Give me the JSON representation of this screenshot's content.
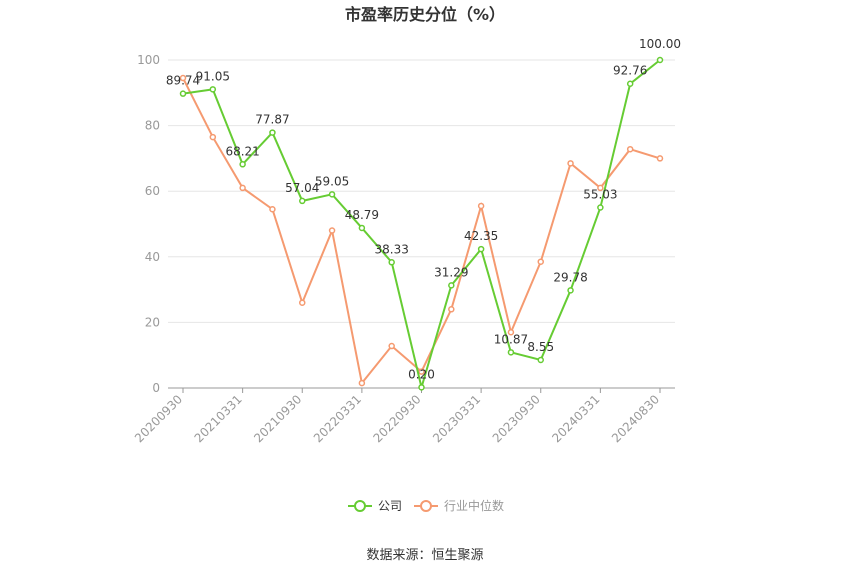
{
  "chart_data": {
    "type": "line",
    "title": "市盈率历史分位（%）",
    "x": [
      "20200930",
      "20201231",
      "20210331",
      "20210630",
      "20210930",
      "20211231",
      "20220331",
      "20220630",
      "20220930",
      "20221231",
      "20230331",
      "20230630",
      "20230930",
      "20231231",
      "20240331",
      "20240630",
      "20240830"
    ],
    "x_tick_labels": [
      "20200930",
      "20210331",
      "20210930",
      "20220331",
      "20220930",
      "20230331",
      "20230930",
      "20240331",
      "20240830"
    ],
    "ylim": [
      0,
      100
    ],
    "y_ticks": [
      0,
      20,
      40,
      60,
      80,
      100
    ],
    "grid": true,
    "legend_position": "bottom",
    "series": [
      {
        "name": "公司",
        "color": "#66cc33",
        "values": [
          89.74,
          91.05,
          68.21,
          77.87,
          57.04,
          59.05,
          48.79,
          38.33,
          0.2,
          31.29,
          42.35,
          10.87,
          8.55,
          29.78,
          55.03,
          92.76,
          100.0
        ],
        "labels": [
          "89.74",
          "91.05",
          "68.21",
          "77.87",
          "57.04",
          "59.05",
          "48.79",
          "38.33",
          "0.20",
          "31.29",
          "42.35",
          "10.87",
          "8.55",
          "29.78",
          "55.03",
          "92.76",
          "100.00"
        ]
      },
      {
        "name": "行业中位数",
        "color": "#f59a70",
        "values": [
          94.5,
          76.5,
          61.0,
          54.5,
          26.0,
          48.0,
          1.5,
          12.8,
          5.0,
          24.0,
          55.5,
          17.0,
          38.5,
          68.5,
          61.0,
          72.8,
          70.0
        ]
      }
    ]
  },
  "legend": {
    "company": "公司",
    "industry": "行业中位数"
  },
  "source": "数据来源：恒生聚源"
}
